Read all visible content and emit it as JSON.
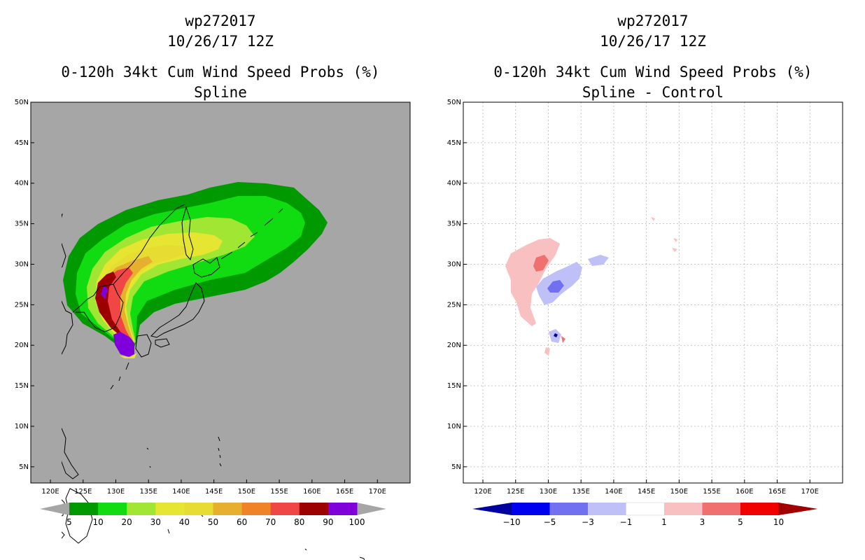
{
  "left_panel": {
    "storm_id": "wp272017",
    "datetime": "10/26/17 12Z",
    "product": "0-120h 34kt Cum Wind Speed Probs (%)",
    "subtitle": "Spline"
  },
  "right_panel": {
    "storm_id": "wp272017",
    "datetime": "10/26/17 12Z",
    "product": "0-120h 34kt Cum Wind Speed Probs (%)",
    "subtitle": "Spline - Control"
  },
  "chart_data": [
    {
      "type": "heatmap",
      "title": "0-120h 34kt Cum Wind Speed Probs (%) — Spline",
      "x_axis": {
        "range": [
          117,
          175
        ],
        "ticks": [
          120,
          125,
          130,
          135,
          140,
          145,
          150,
          155,
          160,
          165,
          170
        ],
        "tick_labels": [
          "120E",
          "125E",
          "130E",
          "135E",
          "140E",
          "145E",
          "150E",
          "155E",
          "160E",
          "165E",
          "170E"
        ]
      },
      "y_axis": {
        "range": [
          3,
          50
        ],
        "ticks": [
          5,
          10,
          15,
          20,
          25,
          30,
          35,
          40,
          45,
          50
        ],
        "tick_labels": [
          "5N",
          "10N",
          "15N",
          "20N",
          "25N",
          "30N",
          "35N",
          "40N",
          "45N",
          "50N"
        ]
      },
      "grid": false,
      "background_color": "#a6a6a6",
      "contour_levels": [
        {
          "level": 5,
          "color": "#009a00"
        },
        {
          "level": 10,
          "color": "#11db11"
        },
        {
          "level": 20,
          "color": "#a0e632"
        },
        {
          "level": 30,
          "color": "#e6e632"
        },
        {
          "level": 40,
          "color": "#e6dc32"
        },
        {
          "level": 50,
          "color": "#e6af2d"
        },
        {
          "level": 60,
          "color": "#f08228"
        },
        {
          "level": 70,
          "color": "#f04646"
        },
        {
          "level": 80,
          "color": "#9c0000"
        },
        {
          "level": 90,
          "color": "#8000dc"
        }
      ],
      "colorbar": {
        "labels": [
          "5",
          "10",
          "20",
          "30",
          "40",
          "50",
          "60",
          "70",
          "80",
          "90",
          "100"
        ],
        "colors": [
          "#009a00",
          "#11db11",
          "#a0e632",
          "#e6e632",
          "#e6dc32",
          "#e6af2d",
          "#f08228",
          "#f04646",
          "#9c0000",
          "#8000dc"
        ],
        "end_arrow_color": "#a6a6a6"
      }
    },
    {
      "type": "heatmap",
      "title": "0-120h 34kt Cum Wind Speed Probs (%) — Spline - Control",
      "x_axis": {
        "range": [
          117,
          175
        ],
        "ticks": [
          120,
          125,
          130,
          135,
          140,
          145,
          150,
          155,
          160,
          165,
          170
        ],
        "tick_labels": [
          "120E",
          "125E",
          "130E",
          "135E",
          "140E",
          "145E",
          "150E",
          "155E",
          "160E",
          "165E",
          "170E"
        ]
      },
      "y_axis": {
        "range": [
          3,
          50
        ],
        "ticks": [
          5,
          10,
          15,
          20,
          25,
          30,
          35,
          40,
          45,
          50
        ],
        "tick_labels": [
          "5N",
          "10N",
          "15N",
          "20N",
          "25N",
          "30N",
          "35N",
          "40N",
          "45N",
          "50N"
        ]
      },
      "grid": true,
      "background_color": "#ffffff",
      "colorbar": {
        "labels": [
          "-10",
          "-5",
          "-3",
          "-1",
          "1",
          "3",
          "5",
          "10"
        ],
        "colors": [
          "#0000a0",
          "#0000f0",
          "#7070f0",
          "#c0c0f8",
          "#ffffff",
          "#f8c0c0",
          "#f07070",
          "#f00000",
          "#a00000"
        ]
      }
    }
  ]
}
